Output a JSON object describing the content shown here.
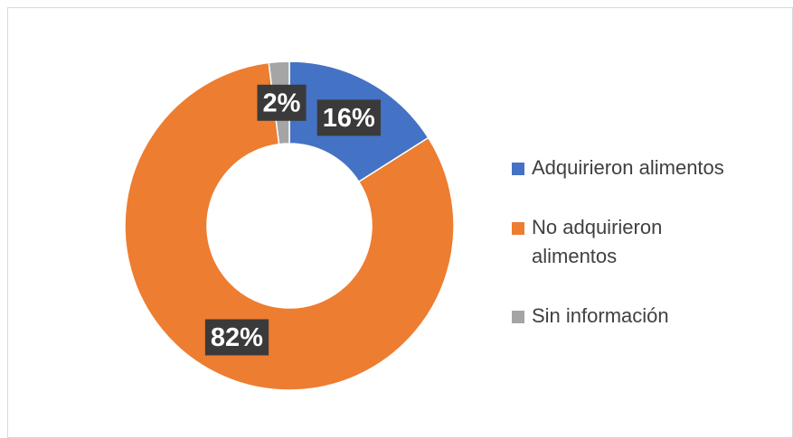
{
  "chart_data": {
    "type": "donut",
    "categories": [
      "Adquirieron alimentos",
      "No adquirieron alimentos",
      "Sin información"
    ],
    "values": [
      16,
      82,
      2
    ],
    "value_labels": [
      "16%",
      "82%",
      "2%"
    ],
    "colors": [
      "#4472c4",
      "#ed7d31",
      "#a5a5a5"
    ],
    "legend": "right"
  }
}
